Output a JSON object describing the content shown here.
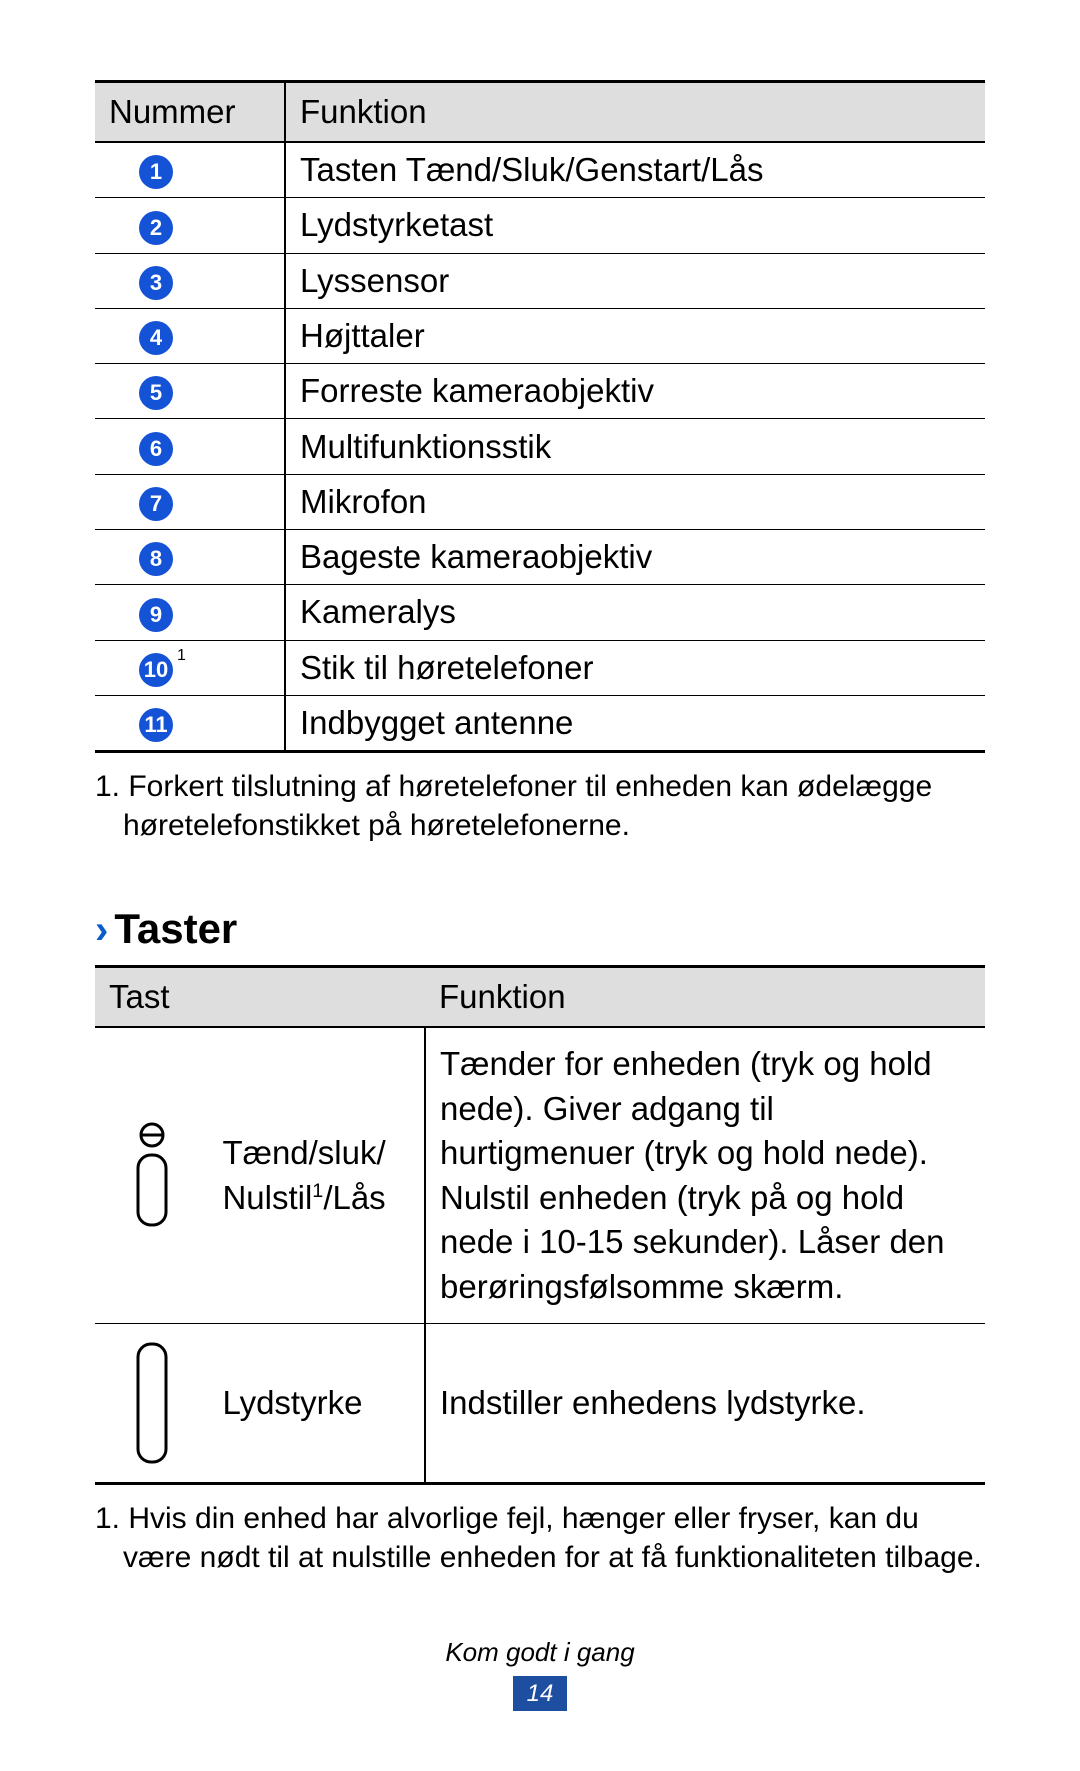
{
  "colors": {
    "circle_bg": "#1452d6",
    "circle_text": "#ffffff",
    "header_bg": "#dedede",
    "chevron": "#0b5ec9",
    "pagenum_bg": "#1e4ea0",
    "table_border": "#000000"
  },
  "table1": {
    "headers": {
      "col1": "Nummer",
      "col2": "Funktion"
    },
    "rows": [
      {
        "num": "1",
        "func": "Tasten Tænd/Sluk/Genstart/Lås"
      },
      {
        "num": "2",
        "func": "Lydstyrketast"
      },
      {
        "num": "3",
        "func": "Lyssensor"
      },
      {
        "num": "4",
        "func": "Højttaler"
      },
      {
        "num": "5",
        "func": "Forreste kameraobjektiv"
      },
      {
        "num": "6",
        "func": "Multifunktionsstik"
      },
      {
        "num": "7",
        "func": "Mikrofon"
      },
      {
        "num": "8",
        "func": "Bageste kameraobjektiv"
      },
      {
        "num": "9",
        "func": "Kameralys"
      },
      {
        "num": "10",
        "func": "Stik til høretelefoner",
        "footnote_mark": "1"
      },
      {
        "num": "11",
        "func": "Indbygget antenne"
      }
    ]
  },
  "footnote1": "1. Forkert tilslutning af høretelefoner til enheden kan ødelægge høretelefonstikket på høretelefonerne.",
  "section2": {
    "chevron": "›",
    "title": "Taster"
  },
  "table2": {
    "headers": {
      "col1": "Tast",
      "col2": "Funktion"
    },
    "rows": [
      {
        "key_label_html": "Tænd/sluk/ Nulstil<sup class=\"inline\">1</sup>/Lås",
        "key_label_plain": "Tænd/sluk/ Nulstil1/Lås",
        "func": "Tænder for enheden (tryk og hold nede). Giver adgang til hurtigmenuer (tryk og hold nede). Nulstil enheden (tryk på og hold nede i 10-15 sekunder). Låser den berøringsfølsomme skærm.",
        "icon": "power"
      },
      {
        "key_label_plain": "Lydstyrke",
        "func": "Indstiller enhedens lydstyrke.",
        "icon": "volume"
      }
    ]
  },
  "footnote2": "1. Hvis din enhed har alvorlige fejl, hænger eller fryser, kan du være nødt til at nulstille enheden for at få funktionaliteten tilbage.",
  "footer": {
    "chapter": "Kom godt i gang",
    "page": "14"
  }
}
